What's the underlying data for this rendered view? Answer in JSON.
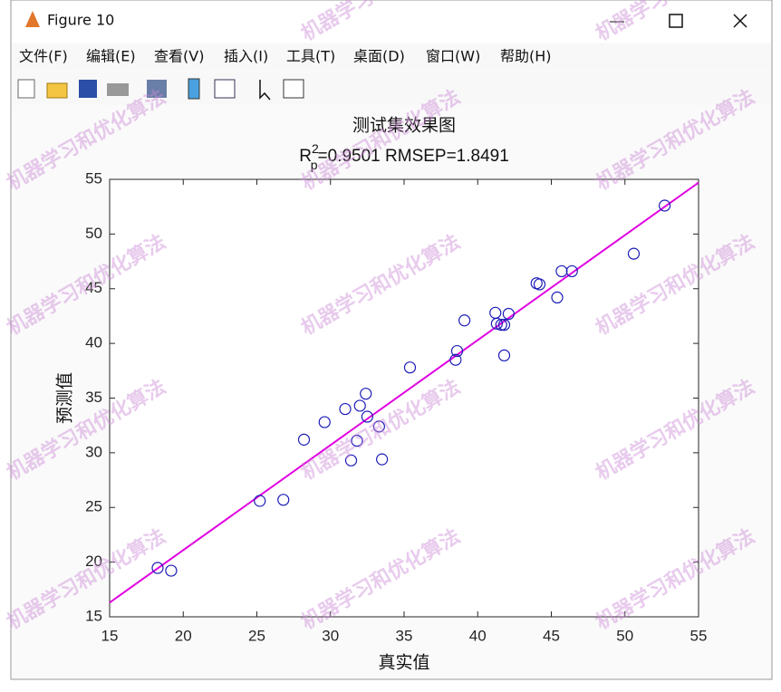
{
  "window": {
    "title": "Figure 10",
    "menu": [
      "文件(F)",
      "编辑(E)",
      "查看(V)",
      "插入(I)",
      "工具(T)",
      "桌面(D)",
      "窗口(W)",
      "帮助(H)"
    ],
    "watermark": "机器学习和优化算法"
  },
  "chart_data": {
    "type": "scatter",
    "title": "测试集效果图",
    "subtitle_parts": [
      "R",
      "2",
      "p",
      "=0.9501  RMSEP=1.8491"
    ],
    "x_label": "真实值",
    "y_label": "预测值",
    "x": [
      18.26,
      19.18,
      25.2,
      26.8,
      28.2,
      29.6,
      31.0,
      31.4,
      31.8,
      32.0,
      32.4,
      32.5,
      33.3,
      33.5,
      35.4,
      38.5,
      38.6,
      39.1,
      41.2,
      41.3,
      41.6,
      41.8,
      42.1,
      41.8,
      44.0,
      44.2,
      45.4,
      45.7,
      46.4,
      50.6,
      52.7
    ],
    "values": [
      19.47,
      19.22,
      25.6,
      25.7,
      31.2,
      32.8,
      34.0,
      29.3,
      31.1,
      34.3,
      35.4,
      33.3,
      32.4,
      29.4,
      37.8,
      38.5,
      39.3,
      42.1,
      42.8,
      41.8,
      41.7,
      41.7,
      42.7,
      38.9,
      45.5,
      45.4,
      44.2,
      46.6,
      46.6,
      48.2,
      52.6
    ],
    "color": "#1c1cb8",
    "fit_line": {
      "x": [
        15,
        55
      ],
      "values": [
        16.3,
        54.7
      ],
      "color": "#e000e0"
    },
    "xlim": [
      15,
      55
    ],
    "ylim": [
      15,
      55
    ],
    "xticks": [
      15,
      20,
      25,
      30,
      35,
      40,
      45,
      50,
      55
    ],
    "yticks": [
      15,
      20,
      25,
      30,
      35,
      40,
      45,
      50,
      55
    ]
  }
}
